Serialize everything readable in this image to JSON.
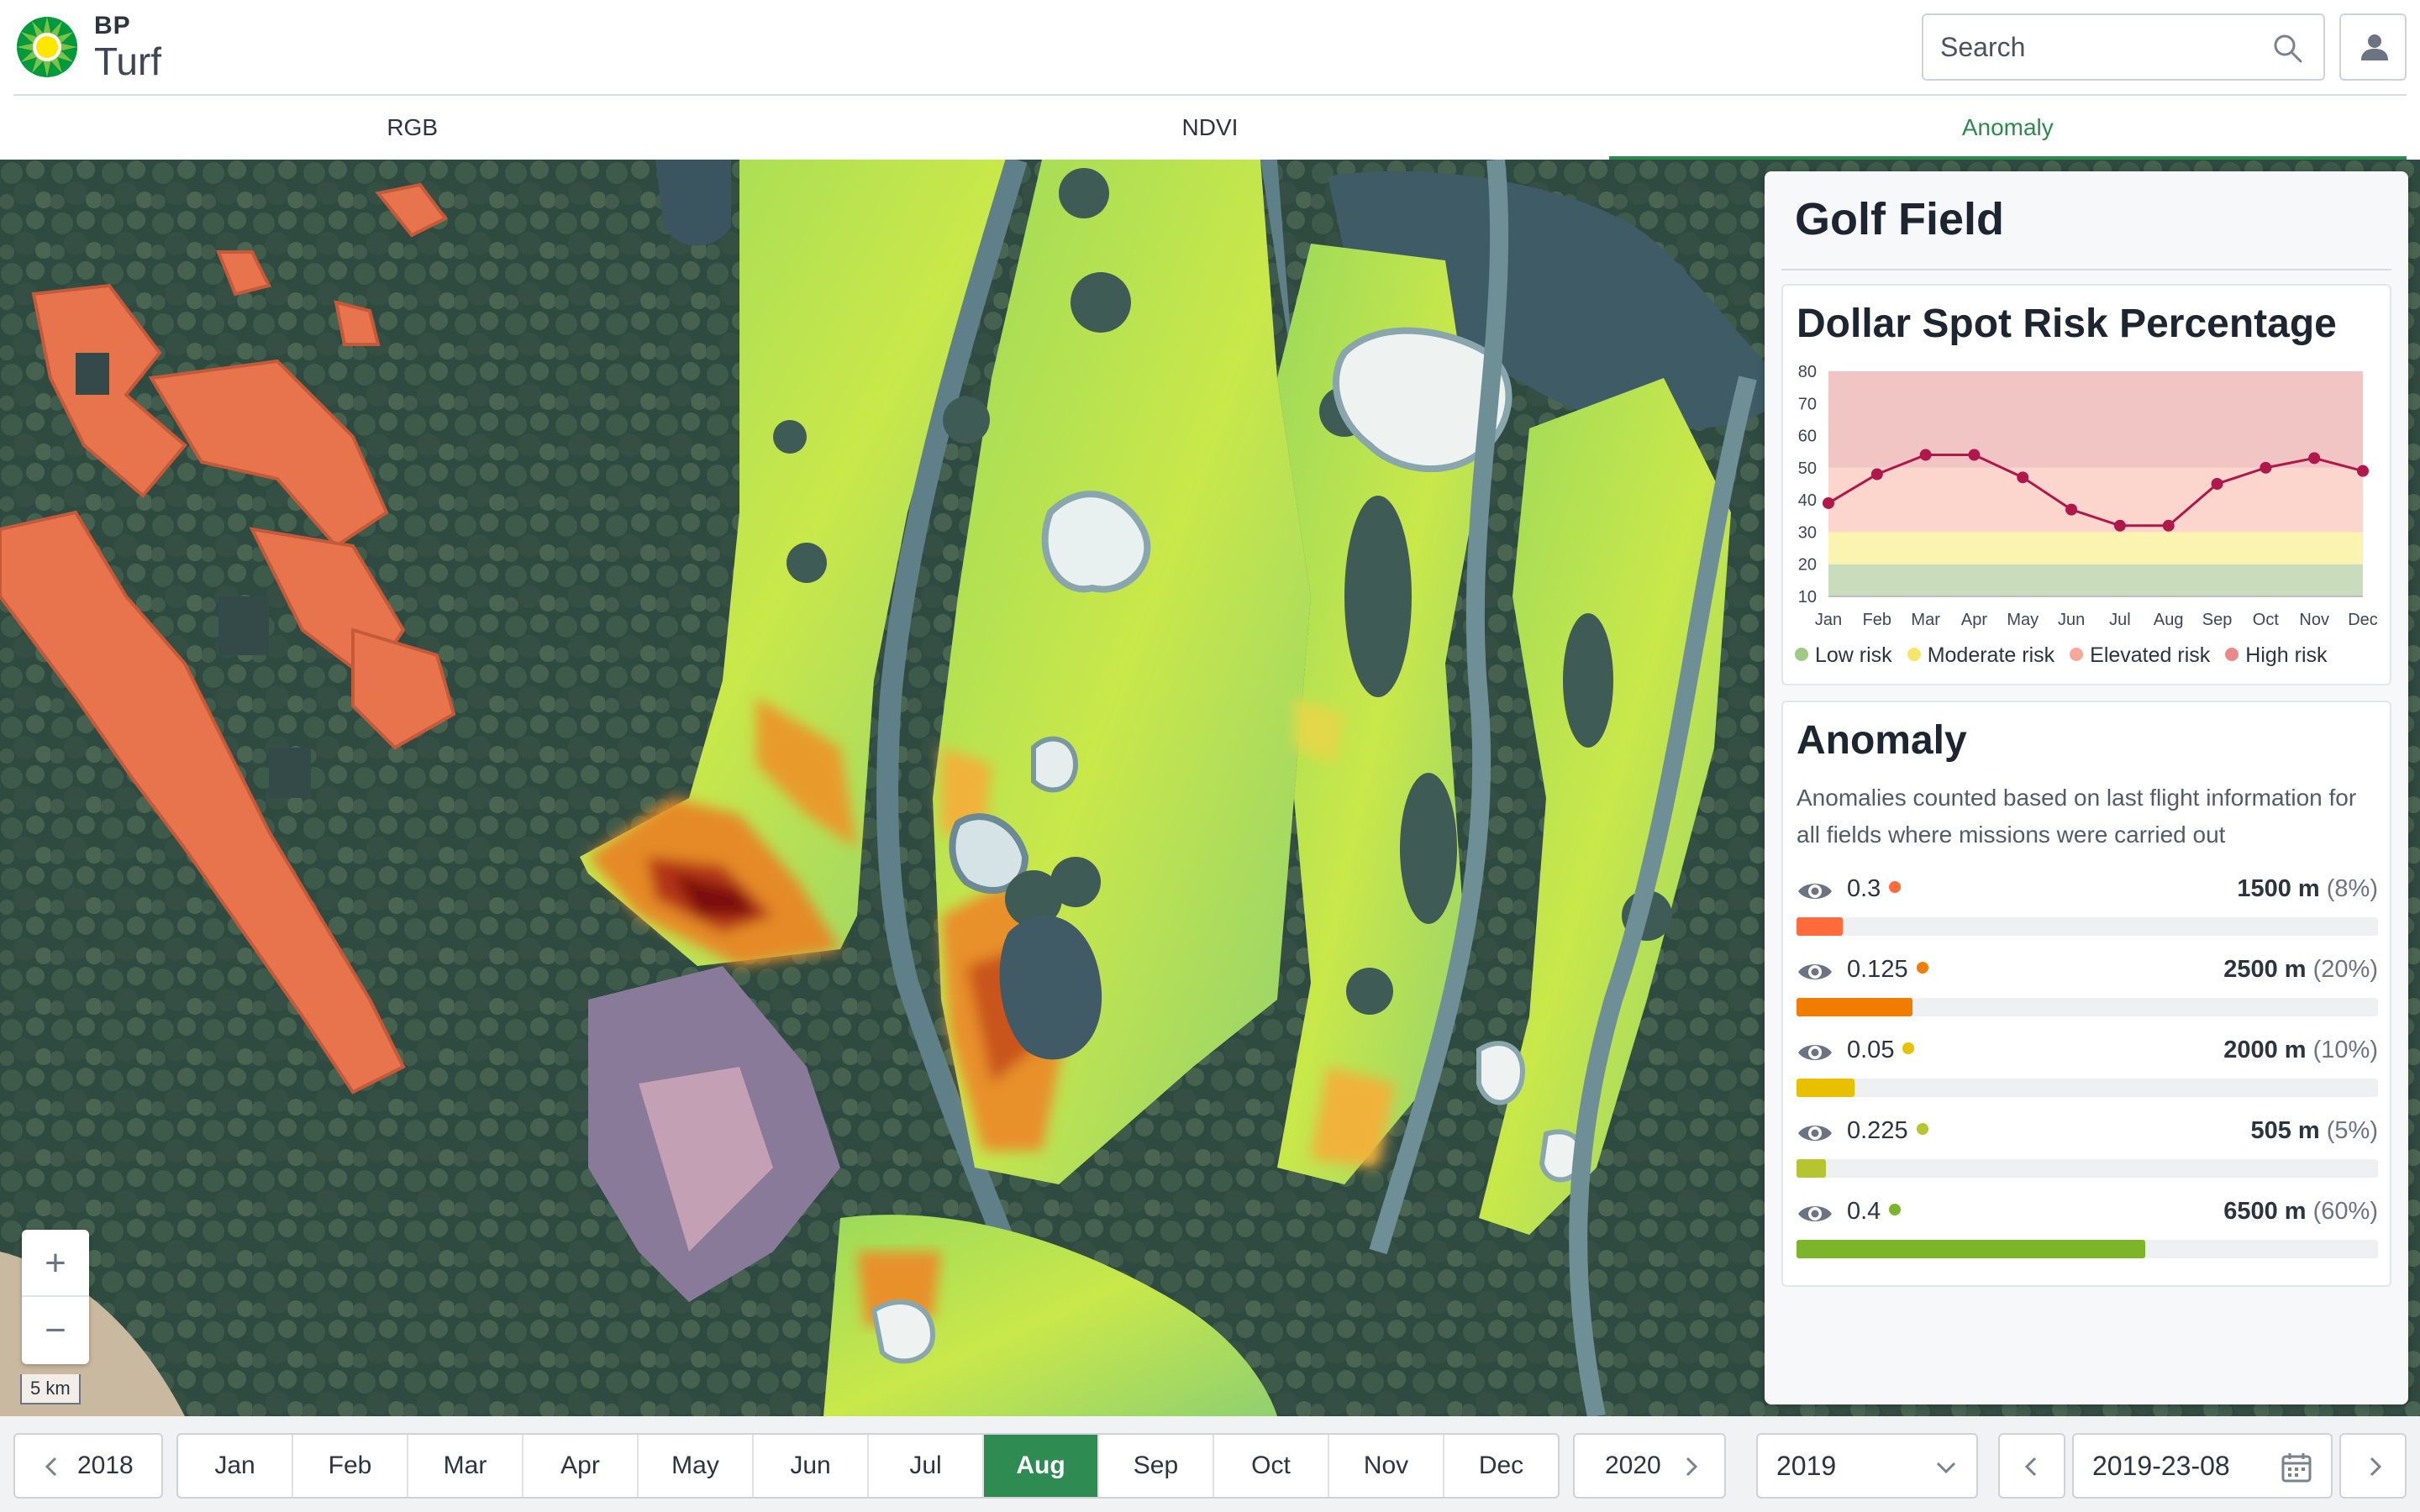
{
  "header": {
    "brand_top": "BP",
    "brand_name": "Turf",
    "search_placeholder": "Search"
  },
  "tabs": [
    {
      "label": "RGB",
      "active": false
    },
    {
      "label": "NDVI",
      "active": false
    },
    {
      "label": "Anomaly",
      "active": true
    }
  ],
  "map": {
    "zoom_in": "+",
    "zoom_out": "−",
    "scale_label": "5 km"
  },
  "panel": {
    "title": "Golf Field",
    "chart_card_title": "Dollar Spot Risk Percentage",
    "anomaly_title": "Anomaly",
    "anomaly_description": "Anomalies counted based on last flight information for all fields where missions were carried out",
    "anomalies": [
      {
        "value": "0.3",
        "amount": "1500 m",
        "percent": "(8%)",
        "fraction": 0.08,
        "color": "#ff6b3d"
      },
      {
        "value": "0.125",
        "amount": "2500 m",
        "percent": "(20%)",
        "fraction": 0.2,
        "color": "#f07d00"
      },
      {
        "value": "0.05",
        "amount": "2000 m",
        "percent": "(10%)",
        "fraction": 0.1,
        "color": "#e8c000"
      },
      {
        "value": "0.225",
        "amount": "505 m",
        "percent": "(5%)",
        "fraction": 0.05,
        "color": "#b5c430"
      },
      {
        "value": "0.4",
        "amount": "6500 m",
        "percent": "(60%)",
        "fraction": 0.6,
        "color": "#7db52a"
      }
    ]
  },
  "chart_data": {
    "type": "line",
    "title": "",
    "xlabel": "",
    "ylabel": "",
    "categories": [
      "Jan",
      "Feb",
      "Mar",
      "Apr",
      "May",
      "Jun",
      "Jul",
      "Aug",
      "Sep",
      "Oct",
      "Nov",
      "Dec"
    ],
    "series": [
      {
        "values": [
          39,
          48,
          54,
          54,
          47,
          37,
          32,
          32,
          45,
          50,
          53,
          49
        ]
      }
    ],
    "ylim": [
      10,
      80
    ],
    "yticks": [
      10,
      20,
      30,
      40,
      50,
      60,
      70,
      80
    ],
    "bands": [
      {
        "name": "Low risk",
        "from": 10,
        "to": 20,
        "color": "#c9dcbc",
        "dot": "#9fca84"
      },
      {
        "name": "Moderate risk",
        "from": 20,
        "to": 30,
        "color": "#fbf3b0",
        "dot": "#f5e66a"
      },
      {
        "name": "Elevated risk",
        "from": 30,
        "to": 50,
        "color": "#fcd5cd",
        "dot": "#f6a99a"
      },
      {
        "name": "High risk",
        "from": 50,
        "to": 80,
        "color": "#f2c5c5",
        "dot": "#e88a8a"
      }
    ],
    "line_color": "#b0174a",
    "grid": false
  },
  "timeline": {
    "prev_year": "2018",
    "next_year": "2020",
    "months": [
      "Jan",
      "Feb",
      "Mar",
      "Apr",
      "May",
      "Jun",
      "Jul",
      "Aug",
      "Sep",
      "Oct",
      "Nov",
      "Dec"
    ],
    "active_month": "Aug",
    "year_select": "2019",
    "date_value": "2019-23-08"
  },
  "colors": {
    "accent": "#2d8a4e",
    "active_month_bg": "#2e8b52"
  },
  "icons": [
    "bp-helios-logo",
    "search-icon",
    "user-icon",
    "eye-icon",
    "chevron-left-icon",
    "chevron-right-icon",
    "chevron-down-icon",
    "calendar-icon"
  ]
}
